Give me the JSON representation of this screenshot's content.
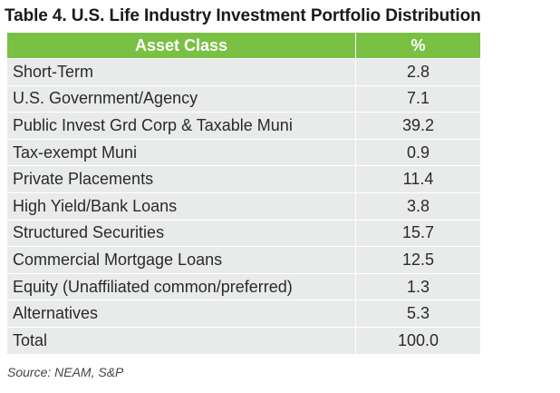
{
  "title": "Table 4. U.S. Life Industry Investment Portfolio Distribution",
  "colors": {
    "header_bg": "#7ac143",
    "header_text": "#ffffff",
    "row_bg": "#e9ebea"
  },
  "table": {
    "headers": [
      "Asset Class",
      "%"
    ],
    "rows": [
      {
        "asset_class": "Short-Term",
        "pct": "2.8"
      },
      {
        "asset_class": "U.S. Government/Agency",
        "pct": "7.1"
      },
      {
        "asset_class": "Public Invest Grd Corp & Taxable Muni",
        "pct": "39.2"
      },
      {
        "asset_class": "Tax-exempt Muni",
        "pct": "0.9"
      },
      {
        "asset_class": "Private Placements",
        "pct": "11.4"
      },
      {
        "asset_class": "High Yield/Bank Loans",
        "pct": "3.8"
      },
      {
        "asset_class": "Structured Securities",
        "pct": "15.7"
      },
      {
        "asset_class": "Commercial Mortgage Loans",
        "pct": "12.5"
      },
      {
        "asset_class": "Equity (Unaffiliated common/preferred)",
        "pct": "1.3"
      },
      {
        "asset_class": "Alternatives",
        "pct": "5.3"
      },
      {
        "asset_class": "Total",
        "pct": "100.0"
      }
    ]
  },
  "source": "Source: NEAM, S&P"
}
